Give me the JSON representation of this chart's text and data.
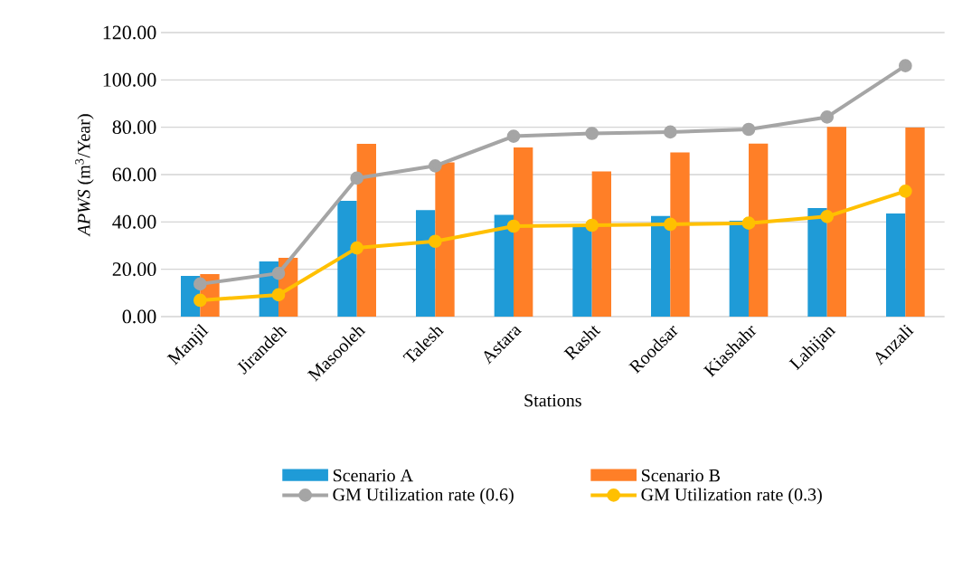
{
  "chart_data": {
    "type": "bar",
    "xlabel": "Stations",
    "ylabel": "*APWS* (m$^{3}$/Year)",
    "categories": [
      "Manjil",
      "Jirandeh",
      "Masooleh",
      "Talesh",
      "Astara",
      "Rasht",
      "Roodsar",
      "Kiashahr",
      "Lahijan",
      "Anzali"
    ],
    "series": [
      {
        "name": "Scenario A",
        "color": "#1f9bd7",
        "values": [
          17.2,
          23.3,
          48.9,
          45.0,
          43.0,
          38.5,
          42.5,
          40.5,
          45.9,
          43.6
        ]
      },
      {
        "name": "Scenario B",
        "color": "#ff7f27",
        "values": [
          18.0,
          24.8,
          73.0,
          65.2,
          71.5,
          61.3,
          69.4,
          73.1,
          80.2,
          79.9
        ]
      },
      {
        "name": "GM Utilization rate (0.6)",
        "type": "line",
        "color": "#a5a5a5",
        "values": [
          13.8,
          18.3,
          58.5,
          63.7,
          76.2,
          77.4,
          78.0,
          79.1,
          84.3,
          106.0
        ]
      },
      {
        "name": "GM Utilization rate (0.3)",
        "type": "line",
        "color": "#ffc000",
        "values": [
          6.9,
          9.2,
          29.0,
          31.8,
          38.2,
          38.6,
          39.0,
          39.5,
          42.3,
          53.0
        ]
      }
    ],
    "ylim": [
      0,
      120
    ],
    "yticks": [
      {
        "value": 0,
        "label": "0.00"
      },
      {
        "value": 20,
        "label": "20.00"
      },
      {
        "value": 40,
        "label": "40.00"
      },
      {
        "value": 60,
        "label": "60.00"
      },
      {
        "value": 80,
        "label": "80.00"
      },
      {
        "value": 100,
        "label": "100.00"
      },
      {
        "value": 120,
        "label": "120.00"
      }
    ],
    "grid": "y",
    "legend": "bottom",
    "marker": "circle"
  }
}
